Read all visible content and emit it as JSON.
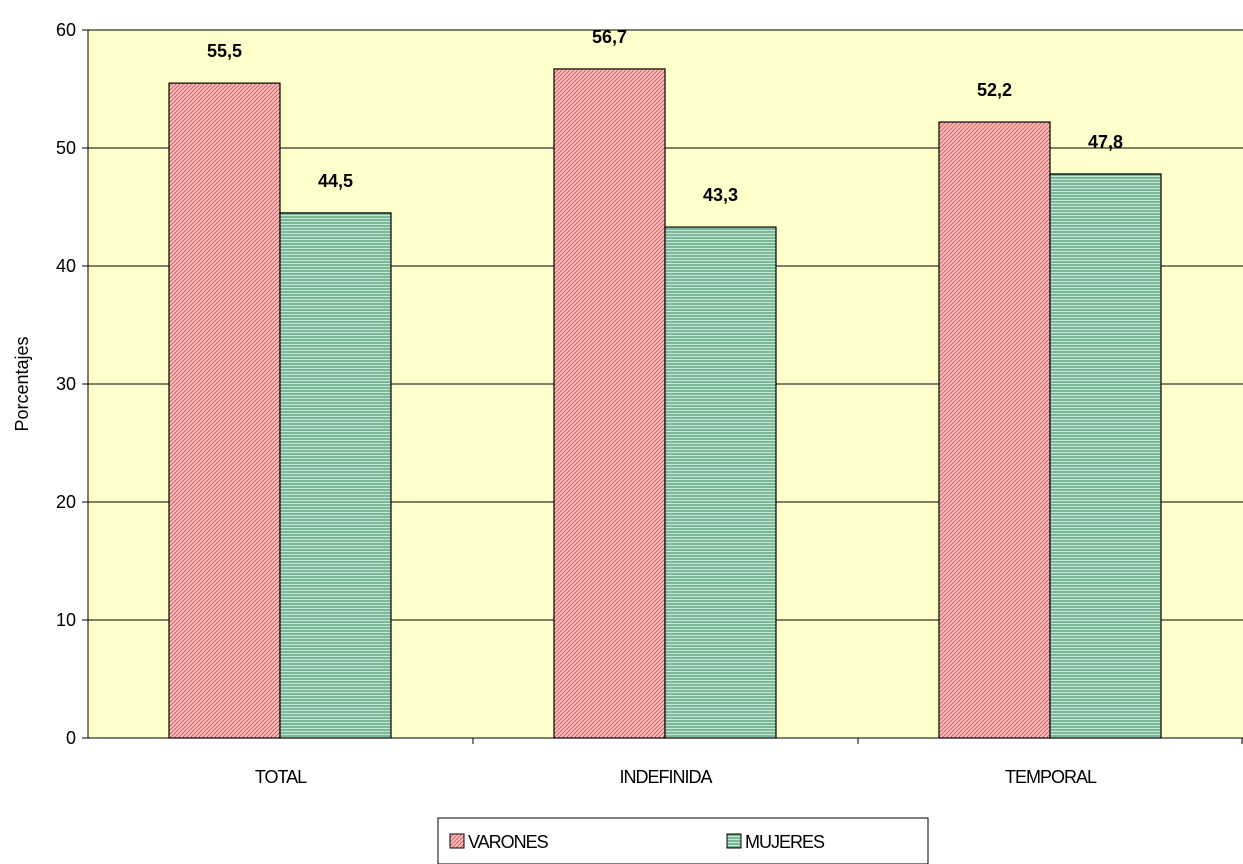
{
  "chart_data": {
    "type": "bar",
    "categories": [
      "TOTAL",
      "INDEFINIDA",
      "TEMPORAL"
    ],
    "series": [
      {
        "name": "VARONES",
        "values": [
          55.5,
          56.7,
          52.2
        ],
        "value_labels": [
          "55,5",
          "56,7",
          "52,2"
        ],
        "color": "#f4a0a0",
        "pattern": "diagonal-hatch"
      },
      {
        "name": "MUJERES",
        "values": [
          44.5,
          43.3,
          47.8
        ],
        "value_labels": [
          "44,5",
          "43,3",
          "47,8"
        ],
        "color": "#88c8a8",
        "pattern": "horizontal-hatch"
      }
    ],
    "title": "",
    "xlabel": "",
    "ylabel": "Porcentajes",
    "ylim": [
      0,
      60
    ],
    "yticks": [
      0,
      10,
      20,
      30,
      40,
      50,
      60
    ],
    "grid": true,
    "legend_position": "bottom",
    "plot_background": "#ffffcc"
  }
}
